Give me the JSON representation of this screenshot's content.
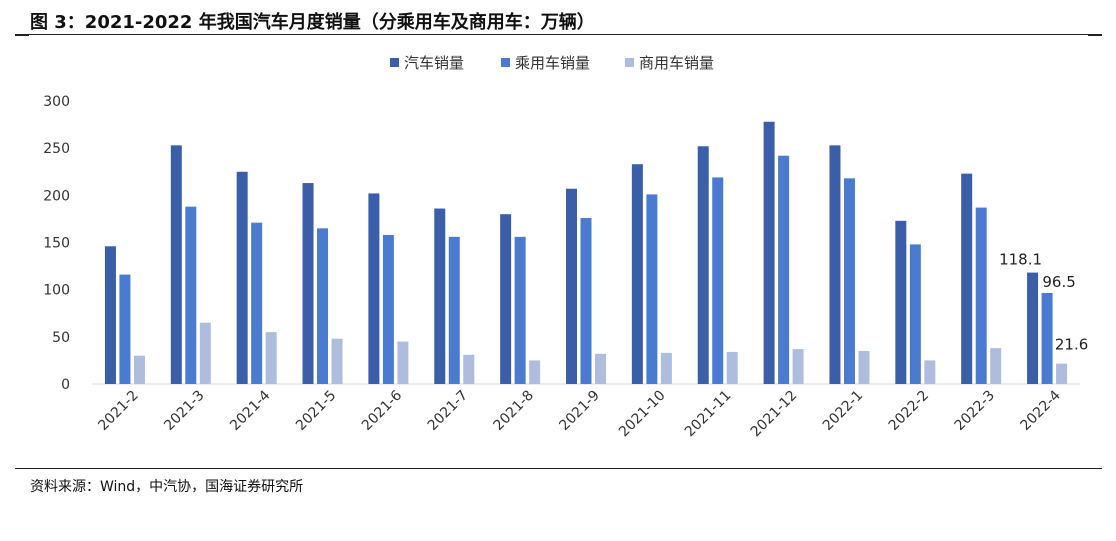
{
  "header": {
    "title": "图 3：2021-2022 年我国汽车月度销量（分乘用车及商用车：万辆）"
  },
  "footer": {
    "source": "资料来源：Wind，中汽协，国海证券研究所"
  },
  "chart_data": {
    "type": "bar",
    "title": "",
    "xlabel": "",
    "ylabel": "",
    "ylim": [
      0,
      300
    ],
    "yticks": [
      0,
      50,
      100,
      150,
      200,
      250,
      300
    ],
    "grid": false,
    "legend_position": "top-center",
    "categories": [
      "2021-2",
      "2021-3",
      "2021-4",
      "2021-5",
      "2021-6",
      "2021-7",
      "2021-8",
      "2021-9",
      "2021-10",
      "2021-11",
      "2021-12",
      "2022-1",
      "2022-2",
      "2022-3",
      "2022-4"
    ],
    "series": [
      {
        "name": "汽车销量",
        "color": "#3a5ea8",
        "values": [
          146,
          253,
          225,
          213,
          202,
          186,
          180,
          207,
          233,
          252,
          278,
          253,
          173,
          223,
          118.1
        ]
      },
      {
        "name": "乘用车销量",
        "color": "#4a7bd0",
        "values": [
          116,
          188,
          171,
          165,
          158,
          156,
          156,
          176,
          201,
          219,
          242,
          218,
          148,
          187,
          96.5
        ]
      },
      {
        "name": "商用车销量",
        "color": "#aebcde",
        "values": [
          30,
          65,
          55,
          48,
          45,
          31,
          25,
          32,
          33,
          34,
          37,
          35,
          25,
          38,
          21.6
        ]
      }
    ],
    "data_labels": [
      {
        "series": 0,
        "index": 14,
        "text": "118.1"
      },
      {
        "series": 1,
        "index": 14,
        "text": "96.5"
      },
      {
        "series": 2,
        "index": 14,
        "text": "21.6"
      }
    ]
  }
}
